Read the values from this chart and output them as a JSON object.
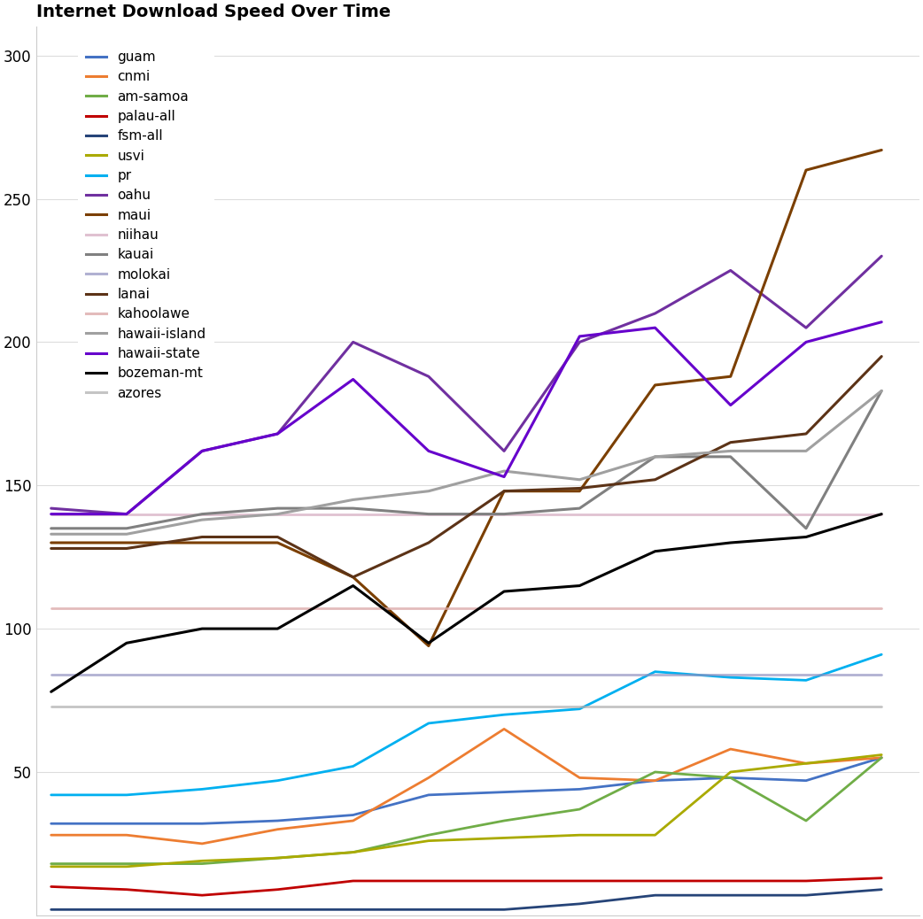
{
  "title": "Internet Download Speed Over Time",
  "background_color": "#ffffff",
  "grid_color": "#dddddd",
  "ylim": [
    0,
    310
  ],
  "yticks": [
    50,
    100,
    150,
    200,
    250,
    300
  ],
  "x_points": [
    0,
    1,
    2,
    3,
    4,
    5,
    6,
    7,
    8,
    9,
    10,
    11
  ],
  "xlim": [
    -0.2,
    11.5
  ],
  "series": {
    "guam": {
      "color": "#4472C4",
      "lw": 2.0,
      "alpha": 1.0,
      "data": [
        32,
        32,
        32,
        33,
        35,
        42,
        43,
        44,
        47,
        48,
        47,
        55
      ]
    },
    "cnmi": {
      "color": "#ED7D31",
      "lw": 2.0,
      "alpha": 1.0,
      "data": [
        28,
        28,
        25,
        30,
        33,
        48,
        65,
        48,
        47,
        58,
        53,
        55
      ]
    },
    "am-samoa": {
      "color": "#70AD47",
      "lw": 2.0,
      "alpha": 1.0,
      "data": [
        18,
        18,
        18,
        20,
        22,
        28,
        33,
        37,
        50,
        48,
        33,
        55
      ]
    },
    "palau-all": {
      "color": "#C00000",
      "lw": 2.0,
      "alpha": 1.0,
      "data": [
        10,
        9,
        7,
        9,
        12,
        12,
        12,
        12,
        12,
        12,
        12,
        13
      ]
    },
    "fsm-all": {
      "color": "#264478",
      "lw": 2.0,
      "alpha": 1.0,
      "data": [
        2,
        2,
        2,
        2,
        2,
        2,
        2,
        4,
        7,
        7,
        7,
        9
      ]
    },
    "usvi": {
      "color": "#AAAA00",
      "lw": 2.0,
      "alpha": 1.0,
      "data": [
        17,
        17,
        19,
        20,
        22,
        26,
        27,
        28,
        28,
        50,
        53,
        56
      ]
    },
    "pr": {
      "color": "#00B0F0",
      "lw": 2.0,
      "alpha": 1.0,
      "data": [
        42,
        42,
        44,
        47,
        52,
        67,
        70,
        72,
        85,
        83,
        82,
        91
      ]
    },
    "oahu": {
      "color": "#7030A0",
      "lw": 2.2,
      "alpha": 1.0,
      "data": [
        142,
        140,
        162,
        168,
        200,
        188,
        162,
        200,
        210,
        225,
        205,
        230
      ]
    },
    "maui": {
      "color": "#7B3F00",
      "lw": 2.2,
      "alpha": 1.0,
      "data": [
        130,
        130,
        130,
        130,
        118,
        94,
        148,
        148,
        185,
        188,
        260,
        267
      ]
    },
    "niihau": {
      "color": "#ddbbcc",
      "lw": 2.0,
      "alpha": 0.9,
      "data": [
        140,
        140,
        140,
        140,
        140,
        140,
        140,
        140,
        140,
        140,
        140,
        140
      ]
    },
    "kauai": {
      "color": "#808080",
      "lw": 2.2,
      "alpha": 1.0,
      "data": [
        135,
        135,
        140,
        142,
        142,
        140,
        140,
        142,
        160,
        160,
        135,
        183
      ]
    },
    "molokai": {
      "color": "#9090c0",
      "lw": 2.0,
      "alpha": 0.7,
      "data": [
        84,
        84,
        84,
        84,
        84,
        84,
        84,
        84,
        84,
        84,
        84,
        84
      ]
    },
    "lanai": {
      "color": "#5C3317",
      "lw": 2.2,
      "alpha": 1.0,
      "data": [
        128,
        128,
        132,
        132,
        118,
        130,
        148,
        149,
        152,
        165,
        168,
        195
      ]
    },
    "kahoolawe": {
      "color": "#ddaaaa",
      "lw": 2.0,
      "alpha": 0.8,
      "data": [
        107,
        107,
        107,
        107,
        107,
        107,
        107,
        107,
        107,
        107,
        107,
        107
      ]
    },
    "hawaii-island": {
      "color": "#A0A0A0",
      "lw": 2.2,
      "alpha": 1.0,
      "data": [
        133,
        133,
        138,
        140,
        145,
        148,
        155,
        152,
        160,
        162,
        162,
        183
      ]
    },
    "hawaii-state": {
      "color": "#6600CC",
      "lw": 2.2,
      "alpha": 1.0,
      "data": [
        140,
        140,
        162,
        168,
        187,
        162,
        153,
        202,
        205,
        178,
        200,
        207
      ]
    },
    "bozeman-mt": {
      "color": "#000000",
      "lw": 2.2,
      "alpha": 1.0,
      "data": [
        78,
        95,
        100,
        100,
        115,
        95,
        113,
        115,
        127,
        130,
        132,
        140
      ]
    },
    "azores": {
      "color": "#b0b0b0",
      "lw": 2.0,
      "alpha": 0.75,
      "data": [
        73,
        73,
        73,
        73,
        73,
        73,
        73,
        73,
        73,
        73,
        73,
        73
      ]
    }
  }
}
